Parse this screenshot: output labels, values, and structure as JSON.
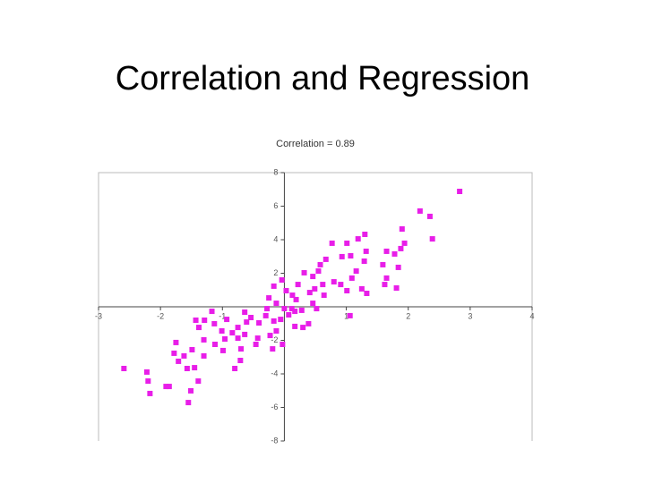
{
  "slide_title": "Correlation and Regression",
  "chart_data": {
    "type": "scatter",
    "title": "Correlation = 0.89",
    "color": "#e81ee8",
    "xlim": [
      -3,
      4
    ],
    "ylim": [
      -8,
      8
    ],
    "xticks": [
      -3,
      -2,
      -1,
      1,
      2,
      3,
      4
    ],
    "yticks": [
      8,
      6,
      4,
      2,
      -2,
      -4,
      -6,
      -8
    ],
    "x": [
      2.83,
      2.19,
      2.35,
      2.39,
      1.9,
      1.94,
      1.88,
      1.78,
      1.65,
      1.59,
      1.84,
      1.65,
      1.62,
      1.81,
      1.3,
      1.19,
      1.01,
      0.77,
      0.93,
      1.07,
      1.29,
      1.32,
      1.16,
      1.09,
      1.25,
      1.33,
      1.01,
      1.06,
      0.8,
      0.91,
      0.67,
      0.58,
      0.55,
      0.46,
      0.49,
      0.41,
      0.32,
      0.22,
      0.13,
      0.03,
      -0.04,
      -0.17,
      -0.25,
      -0.28,
      -0.13,
      0.0,
      0.12,
      0.19,
      0.28,
      0.39,
      0.46,
      0.52,
      0.07,
      -0.06,
      -0.17,
      -0.3,
      -0.41,
      -0.54,
      -0.64,
      -0.61,
      -0.75,
      -0.84,
      -0.93,
      -1.01,
      -1.13,
      -1.17,
      -1.29,
      -1.38,
      -1.43,
      -1.3,
      -1.12,
      -0.96,
      -0.75,
      -0.7,
      -0.64,
      -0.43,
      -0.23,
      -0.13,
      -0.19,
      -0.46,
      -0.71,
      -0.8,
      -0.99,
      -1.3,
      -1.49,
      -1.57,
      -1.62,
      -1.71,
      -1.75,
      -1.78,
      -1.45,
      -1.39,
      -1.51,
      -1.55,
      -1.86,
      -1.91,
      -2.17,
      -2.2,
      -2.22,
      -2.59,
      -0.03,
      0.17,
      0.3,
      0.64,
      0.62,
      0.17
    ],
    "values": [
      6.88,
      5.71,
      5.39,
      4.05,
      4.64,
      3.79,
      3.47,
      3.15,
      3.31,
      2.51,
      2.35,
      1.71,
      1.33,
      1.12,
      4.32,
      4.05,
      3.79,
      3.79,
      2.99,
      3.04,
      2.72,
      3.31,
      2.13,
      1.71,
      1.07,
      0.8,
      0.96,
      -0.53,
      1.49,
      1.33,
      2.83,
      2.51,
      2.13,
      1.81,
      1.07,
      0.85,
      2.03,
      1.33,
      0.69,
      0.96,
      1.6,
      1.23,
      0.53,
      -0.11,
      0.21,
      -0.11,
      -0.11,
      0.43,
      -0.21,
      -1.01,
      0.21,
      -0.11,
      -0.48,
      -0.75,
      -0.85,
      -0.53,
      -0.96,
      -0.64,
      -0.32,
      -0.91,
      -1.23,
      -1.55,
      -0.75,
      -1.44,
      -1.01,
      -0.27,
      -0.8,
      -1.23,
      -0.8,
      -1.97,
      -2.24,
      -1.92,
      -1.87,
      -2.51,
      -1.65,
      -1.87,
      -1.71,
      -1.44,
      -2.51,
      -2.24,
      -3.2,
      -3.68,
      -2.61,
      -2.93,
      -2.56,
      -3.68,
      -2.93,
      -3.25,
      -2.13,
      -2.77,
      -3.63,
      -4.43,
      -5.01,
      -5.71,
      -4.75,
      -4.75,
      -5.17,
      -4.43,
      -3.89,
      -3.68,
      -2.24,
      -1.17,
      -1.23,
      0.69,
      1.33,
      -0.27
    ]
  }
}
